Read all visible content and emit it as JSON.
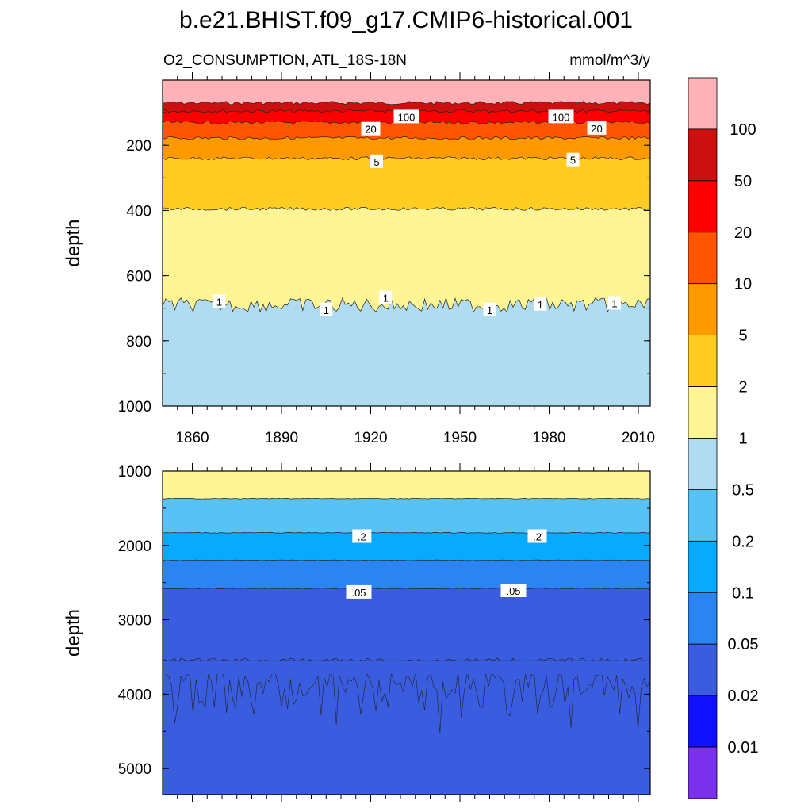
{
  "chart_data": {
    "type": "heatmap",
    "title": "b.e21.BHIST.f09_g17.CMIP6-historical.001",
    "subtitle_left": "O2_CONSUMPTION, ATL_18S-18N",
    "subtitle_right": "mmol/m^3/y",
    "colorbar": {
      "labels": [
        "100",
        "50",
        "20",
        "10",
        "5",
        "2",
        "1",
        "0.5",
        "0.2",
        "0.1",
        "0.05",
        "0.02",
        "0.01"
      ],
      "colors": [
        "#ffb3b8",
        "#cc1010",
        "#ff0000",
        "#ff5400",
        "#ff9900",
        "#ffcc22",
        "#fff594",
        "#b0dcf2",
        "#56c2f5",
        "#07aaff",
        "#2a84f2",
        "#3a5de0",
        "#1010ff",
        "#7a30ec"
      ]
    },
    "panels": [
      {
        "ylabel": "depth",
        "yrange": [
          1000,
          0
        ],
        "ytick_labels": [
          "200",
          "400",
          "600",
          "800",
          "1000"
        ],
        "xtick_labels": [
          "1860",
          "1890",
          "1920",
          "1950",
          "1980",
          "2010"
        ],
        "xrange": [
          1850,
          2014
        ],
        "contour_depths": [
          {
            "level": "100",
            "depth": 70
          },
          {
            "level": "50",
            "depth": 95
          },
          {
            "level": "20",
            "depth": 130
          },
          {
            "level": "10",
            "depth": 178
          },
          {
            "level": "5",
            "depth": 240
          },
          {
            "level": "2",
            "depth": 395
          },
          {
            "level": "1",
            "depth": 690
          }
        ],
        "contour_labels": [
          {
            "text": "100",
            "year": 1932,
            "depth": 113
          },
          {
            "text": "100",
            "year": 1984,
            "depth": 113
          },
          {
            "text": "20",
            "year": 1920,
            "depth": 150
          },
          {
            "text": "20",
            "year": 1996,
            "depth": 148
          },
          {
            "text": "5",
            "year": 1922,
            "depth": 250
          },
          {
            "text": "5",
            "year": 1988,
            "depth": 245
          },
          {
            "text": "1",
            "year": 1869,
            "depth": 680
          },
          {
            "text": "1",
            "year": 1905,
            "depth": 705
          },
          {
            "text": "1",
            "year": 1925,
            "depth": 668
          },
          {
            "text": "1",
            "year": 1960,
            "depth": 705
          },
          {
            "text": "1",
            "year": 1977,
            "depth": 688
          },
          {
            "text": "1",
            "year": 2002,
            "depth": 685
          }
        ]
      },
      {
        "ylabel": "depth",
        "yrange": [
          5350,
          1000
        ],
        "ytick_labels": [
          "1000",
          "2000",
          "3000",
          "4000",
          "5000"
        ],
        "xrange": [
          1850,
          2014
        ],
        "contour_depths": [
          {
            "level": "0.5",
            "depth": 1370
          },
          {
            "level": "0.2",
            "depth": 1830
          },
          {
            "level": "0.1",
            "depth": 2200
          },
          {
            "level": "0.05",
            "depth": 2580
          },
          {
            "level": "0.02",
            "depth": 3550
          }
        ],
        "contour_labels": [
          {
            "text": ".2",
            "year": 1917,
            "depth": 1880
          },
          {
            "text": ".2",
            "year": 1976,
            "depth": 1880
          },
          {
            "text": ".05",
            "year": 1916,
            "depth": 2630
          },
          {
            "text": ".05",
            "year": 1968,
            "depth": 2610
          }
        ]
      }
    ]
  }
}
